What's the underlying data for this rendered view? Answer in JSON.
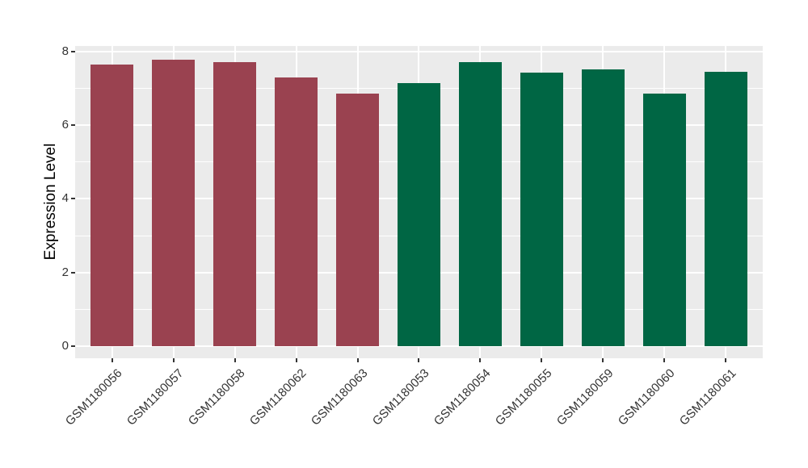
{
  "chart_data": {
    "type": "bar",
    "title": "",
    "xlabel": "",
    "ylabel": "Expression Level",
    "categories": [
      "GSM1180056",
      "GSM1180057",
      "GSM1180058",
      "GSM1180062",
      "GSM1180063",
      "GSM1180053",
      "GSM1180054",
      "GSM1180055",
      "GSM1180059",
      "GSM1180060",
      "GSM1180061"
    ],
    "values": [
      7.65,
      7.78,
      7.72,
      7.3,
      6.85,
      7.15,
      7.71,
      7.42,
      7.51,
      6.85,
      7.45
    ],
    "bar_colors": [
      "#9A4250",
      "#9A4250",
      "#9A4250",
      "#9A4250",
      "#9A4250",
      "#006644",
      "#006644",
      "#006644",
      "#006644",
      "#006644",
      "#006644"
    ],
    "group_colors": {
      "left_group": "#9A4250",
      "right_group": "#006644"
    },
    "yticks": [
      0,
      2,
      4,
      6,
      8
    ],
    "minor_yticks": [
      1,
      3,
      5,
      7
    ],
    "ylim": [
      0,
      8
    ],
    "grid": true,
    "legend": "none",
    "panel_background": "#EBEBEB",
    "grid_color": "#FFFFFF",
    "axis_text_color": "#333333",
    "tick_color": "#333333",
    "x_label_angle_deg": 45
  }
}
